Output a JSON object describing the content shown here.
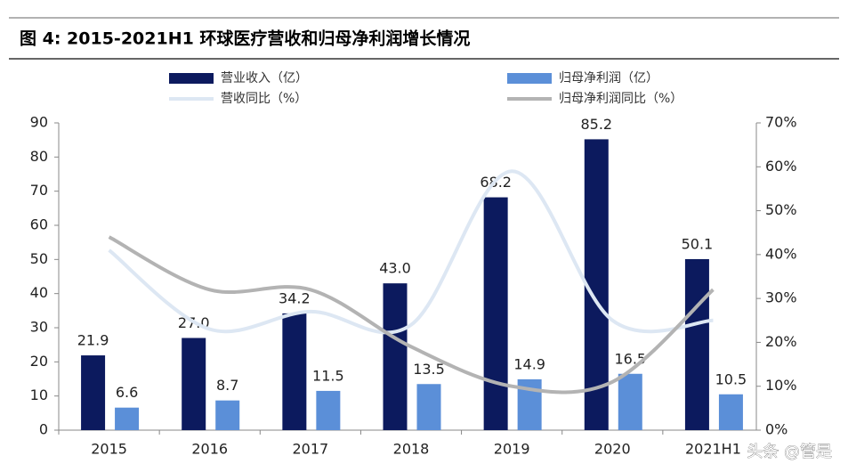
{
  "chart_data": {
    "type": "bar",
    "title": "图 4: 2015-2021H1 环球医疗营收和归母净利润增长情况",
    "categories": [
      "2015",
      "2016",
      "2017",
      "2018",
      "2019",
      "2020",
      "2021H1"
    ],
    "series": [
      {
        "name": "营业收入（亿）",
        "color": "#0c1a5e",
        "type": "bar",
        "values": [
          21.9,
          27.0,
          34.2,
          43.0,
          68.2,
          85.2,
          50.1
        ],
        "value_labels": [
          "21.9",
          "27.0",
          "34.2",
          "43.0",
          "68.2",
          "85.2",
          "50.1"
        ]
      },
      {
        "name": "归母净利润（亿）",
        "color": "#5b8fd8",
        "type": "bar",
        "values": [
          6.6,
          8.7,
          11.5,
          13.5,
          14.9,
          16.5,
          10.5
        ],
        "value_labels": [
          "6.6",
          "8.7",
          "11.5",
          "13.5",
          "14.9",
          "16.5",
          "10.5"
        ]
      },
      {
        "name": "营收同比（%）",
        "color": "#dde7f3",
        "type": "line",
        "axis": "y2",
        "values": [
          41,
          23,
          27,
          24,
          59,
          25,
          25
        ]
      },
      {
        "name": "归母净利润同比（%）",
        "color": "#b3b3b3",
        "type": "line",
        "axis": "y2",
        "values": [
          44,
          32,
          32,
          19,
          10,
          11,
          32
        ]
      }
    ],
    "ylim": [
      0,
      90
    ],
    "yticks": [
      0,
      10,
      20,
      30,
      40,
      50,
      60,
      70,
      80,
      90
    ],
    "y2lim": [
      0,
      70
    ],
    "y2ticks": [
      {
        "value": 0,
        "label": "0%"
      },
      {
        "value": 10,
        "label": "10%"
      },
      {
        "value": 20,
        "label": "20%"
      },
      {
        "value": 30,
        "label": "30%"
      },
      {
        "value": 40,
        "label": "40%"
      },
      {
        "value": 50,
        "label": "50%"
      },
      {
        "value": 60,
        "label": "60%"
      },
      {
        "value": 70,
        "label": "70%"
      }
    ],
    "watermark": "头条 @管是"
  }
}
